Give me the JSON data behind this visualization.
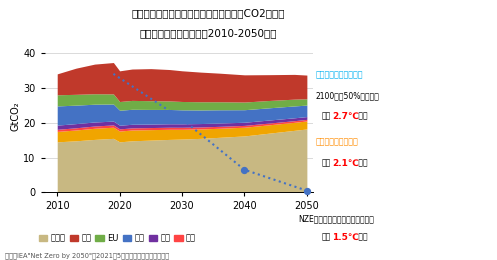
{
  "title_line1": "エネルギー起源及び工業プロセス由来のCO2排出量",
  "title_line2": "（シナリオ別・地域別、2010-2050年）",
  "ylabel": "GtCO₂",
  "source_text": "出所：IEA\"Net Zero by 2050\"（2021年5月）などより大和証券作成",
  "years": [
    2010,
    2013,
    2016,
    2019,
    2020,
    2022,
    2025,
    2028,
    2030,
    2033,
    2036,
    2040,
    2044,
    2048,
    2050
  ],
  "layer_order": [
    "その他",
    "韓国",
    "日本",
    "米国",
    "EU",
    "中国"
  ],
  "layer_colors": {
    "その他": "#c8b882",
    "中国": "#c0392b",
    "EU": "#70ad47",
    "米国": "#4472c4",
    "日本": "#7030a0",
    "韓国": "#ff4444"
  },
  "yellow_color": "#f0a500",
  "yellow_vals": [
    3.0,
    3.1,
    3.2,
    3.2,
    3.1,
    3.1,
    3.0,
    2.9,
    2.8,
    2.7,
    2.6,
    2.5,
    2.4,
    2.3,
    2.3
  ],
  "layer_vals": {
    "その他": [
      14.5,
      14.8,
      15.2,
      15.5,
      14.5,
      14.8,
      15.0,
      15.2,
      15.3,
      15.5,
      15.8,
      16.2,
      17.0,
      17.8,
      18.2
    ],
    "韓国": [
      0.6,
      0.63,
      0.65,
      0.65,
      0.62,
      0.61,
      0.6,
      0.59,
      0.58,
      0.57,
      0.55,
      0.52,
      0.5,
      0.47,
      0.45
    ],
    "日本": [
      1.2,
      1.2,
      1.15,
      1.1,
      1.05,
      1.03,
      1.0,
      1.0,
      1.0,
      0.98,
      0.95,
      0.9,
      0.87,
      0.83,
      0.8
    ],
    "米国": [
      5.5,
      5.3,
      5.1,
      4.9,
      4.3,
      4.3,
      4.2,
      4.1,
      4.0,
      3.9,
      3.8,
      3.6,
      3.5,
      3.4,
      3.3
    ],
    "EU": [
      3.2,
      3.1,
      3.0,
      2.9,
      2.5,
      2.55,
      2.5,
      2.45,
      2.4,
      2.35,
      2.3,
      2.2,
      2.1,
      1.95,
      1.8
    ],
    "中国": [
      6.0,
      7.5,
      8.5,
      9.0,
      8.8,
      9.0,
      9.2,
      9.0,
      8.8,
      8.5,
      8.2,
      7.8,
      7.4,
      7.1,
      6.8
    ]
  },
  "nze_years": [
    2019,
    2030,
    2040,
    2050
  ],
  "nze_values": [
    34.0,
    21.0,
    6.5,
    0.5
  ],
  "ylim": [
    0,
    44
  ],
  "xlim": [
    2008,
    2051
  ],
  "yticks": [
    0,
    10,
    20,
    30,
    40
  ],
  "xticks": [
    2010,
    2020,
    2030,
    2040,
    2050
  ],
  "ann_s1_label": "』現行政策シナリオ『",
  "ann_s1_line1": "2100年に50%の確率で",
  "ann_s1_temp": "2.7℃",
  "ann_s1_suffix": "上昇",
  "ann_s2_temp": "2.1℃",
  "ann_s2_suffix": "上昇",
  "ann_s3_label": "NZE』ネットゼロ排出シナリオ『",
  "ann_s3_temp": "1.5℃",
  "ann_s3_suffix": "上昇",
  "legend_labels": [
    "その他",
    "中国",
    "EU",
    "米国",
    "日本",
    "韓国"
  ]
}
